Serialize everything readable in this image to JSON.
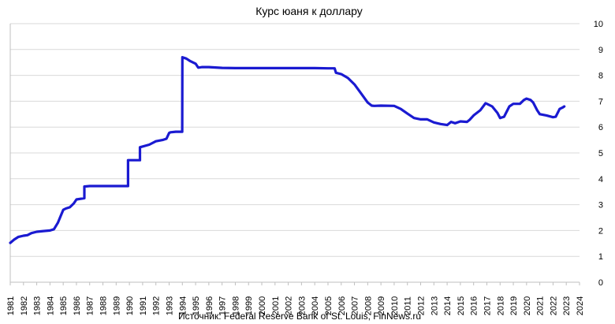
{
  "chart_data": {
    "type": "line",
    "title": "Курс юаня к доллару",
    "source": "Источник: Federal Reserve Bank of St. Louis, FinNews.ru",
    "xlabel": "",
    "ylabel": "",
    "xlim": [
      1981,
      2024
    ],
    "ylim": [
      0,
      10
    ],
    "grid": "horizontal",
    "legend": "none",
    "line_color": "#1a1ad1",
    "grid_color": "#d9d9d9",
    "x_ticks": [
      "1981",
      "1982",
      "1983",
      "1984",
      "1985",
      "1986",
      "1987",
      "1988",
      "1989",
      "1990",
      "1991",
      "1992",
      "1993",
      "1994",
      "1995",
      "1996",
      "1997",
      "1998",
      "1999",
      "2000",
      "2001",
      "2002",
      "2003",
      "2004",
      "2005",
      "2006",
      "2007",
      "2008",
      "2009",
      "2010",
      "2011",
      "2012",
      "2013",
      "2014",
      "2015",
      "2016",
      "2017",
      "2018",
      "2019",
      "2020",
      "2021",
      "2022",
      "2023",
      "2024"
    ],
    "y_ticks": [
      0,
      1,
      2,
      3,
      4,
      5,
      6,
      7,
      8,
      9,
      10
    ],
    "series": [
      {
        "x": [
          1981.0,
          1981.3,
          1981.6,
          1982.0,
          1982.3,
          1982.6,
          1983.0,
          1983.5,
          1984.0,
          1984.3,
          1984.6,
          1984.8,
          1985.0,
          1985.2,
          1985.5,
          1985.8,
          1986.0,
          1986.6,
          1986.6,
          1987.0,
          1989.9,
          1989.9,
          1990.8,
          1990.8,
          1991.5,
          1992.0,
          1992.5,
          1992.8,
          1993.0,
          1993.1,
          1993.5,
          1993.99,
          1994.0,
          1994.3,
          1994.6,
          1995.0,
          1995.2,
          1995.5,
          1996.0,
          1997.0,
          1998.0,
          1999.0,
          2000.0,
          2001.0,
          2002.0,
          2003.0,
          2004.0,
          2005.0,
          2005.5,
          2005.6,
          2006.0,
          2006.5,
          2007.0,
          2007.5,
          2008.0,
          2008.3,
          2008.5,
          2009.0,
          2010.0,
          2010.5,
          2011.0,
          2011.5,
          2012.0,
          2012.5,
          2013.0,
          2013.5,
          2014.0,
          2014.3,
          2014.6,
          2015.0,
          2015.5,
          2015.7,
          2016.0,
          2016.5,
          2016.9,
          2017.0,
          2017.4,
          2017.8,
          2018.0,
          2018.3,
          2018.7,
          2019.0,
          2019.5,
          2019.8,
          2020.0,
          2020.3,
          2020.5,
          2020.8,
          2021.0,
          2021.5,
          2022.0,
          2022.2,
          2022.5,
          2022.7,
          2022.85
        ],
        "y": [
          1.52,
          1.65,
          1.75,
          1.8,
          1.82,
          1.9,
          1.95,
          1.98,
          2.0,
          2.05,
          2.3,
          2.55,
          2.8,
          2.85,
          2.9,
          3.05,
          3.2,
          3.25,
          3.7,
          3.72,
          3.72,
          4.72,
          4.72,
          5.22,
          5.32,
          5.45,
          5.5,
          5.55,
          5.77,
          5.8,
          5.82,
          5.82,
          8.7,
          8.65,
          8.55,
          8.45,
          8.3,
          8.32,
          8.32,
          8.29,
          8.28,
          8.28,
          8.28,
          8.28,
          8.28,
          8.28,
          8.28,
          8.27,
          8.27,
          8.1,
          8.05,
          7.9,
          7.65,
          7.3,
          6.95,
          6.83,
          6.82,
          6.83,
          6.82,
          6.7,
          6.52,
          6.35,
          6.3,
          6.3,
          6.18,
          6.12,
          6.08,
          6.2,
          6.15,
          6.22,
          6.2,
          6.28,
          6.45,
          6.65,
          6.92,
          6.9,
          6.8,
          6.55,
          6.35,
          6.4,
          6.8,
          6.9,
          6.9,
          7.05,
          7.1,
          7.05,
          6.95,
          6.65,
          6.5,
          6.45,
          6.38,
          6.4,
          6.7,
          6.75,
          6.8
        ]
      }
    ]
  }
}
